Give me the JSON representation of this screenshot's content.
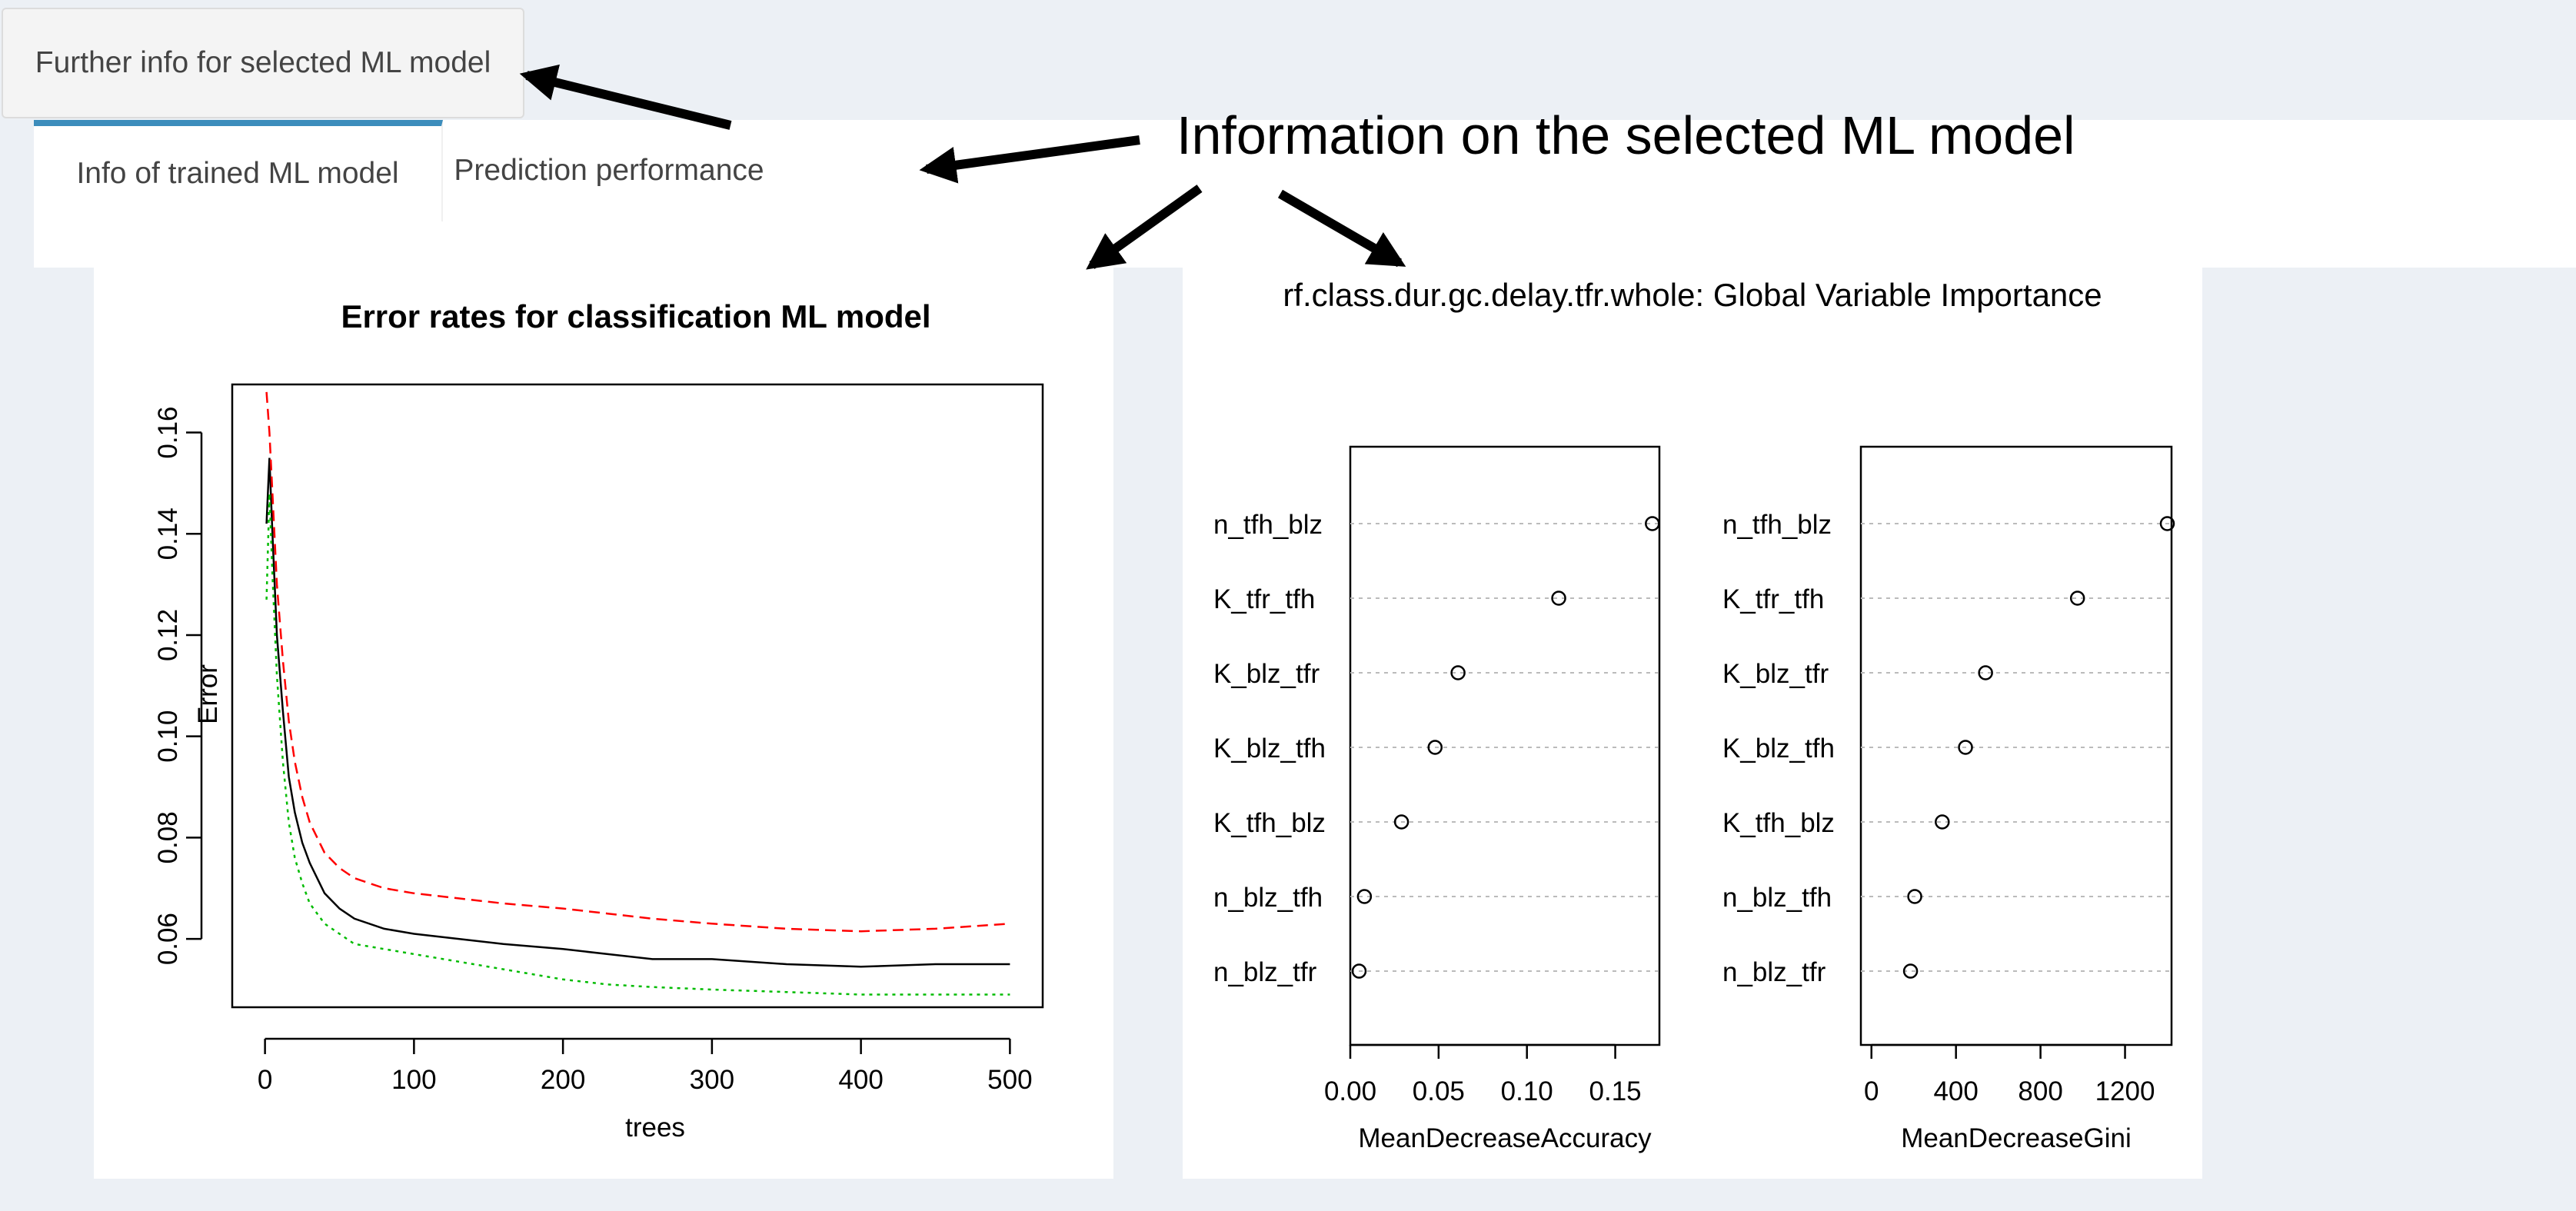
{
  "further_button": {
    "label": "Further info for selected ML model"
  },
  "tabs": [
    {
      "label": "Info of trained ML model",
      "active": true
    },
    {
      "label": "Prediction performance",
      "active": false
    }
  ],
  "annotation": {
    "text": "Information on the selected ML model"
  },
  "colors": {
    "accent": "#3c8dbc",
    "page_bg": "#ecf0f5",
    "oob": "#000000",
    "class1": "#ff0000",
    "class2": "#00bb00"
  },
  "chart_data": [
    {
      "type": "line",
      "title": "Error rates for classification ML model",
      "xlabel": "trees",
      "ylabel": "Error",
      "xlim": [
        0,
        500
      ],
      "ylim": [
        0.05,
        0.16
      ],
      "xticks": [
        "0",
        "100",
        "200",
        "300",
        "400",
        "500"
      ],
      "yticks": [
        "0.06",
        "0.08",
        "0.10",
        "0.12",
        "0.14",
        "0.16"
      ],
      "x": [
        1,
        3,
        5,
        8,
        12,
        16,
        20,
        25,
        30,
        40,
        50,
        60,
        80,
        100,
        130,
        160,
        200,
        230,
        260,
        300,
        350,
        400,
        450,
        500
      ],
      "series": [
        {
          "style": "solid",
          "color": "#000000",
          "values": [
            0.142,
            0.155,
            0.14,
            0.12,
            0.105,
            0.092,
            0.085,
            0.079,
            0.075,
            0.069,
            0.066,
            0.064,
            0.062,
            0.061,
            0.06,
            0.059,
            0.058,
            0.057,
            0.056,
            0.056,
            0.055,
            0.0545,
            0.055,
            0.055
          ]
        },
        {
          "style": "dashed",
          "color": "#ff0000",
          "values": [
            0.168,
            0.16,
            0.148,
            0.13,
            0.115,
            0.103,
            0.095,
            0.088,
            0.083,
            0.077,
            0.074,
            0.072,
            0.07,
            0.069,
            0.068,
            0.067,
            0.066,
            0.065,
            0.064,
            0.063,
            0.062,
            0.0615,
            0.062,
            0.063
          ]
        },
        {
          "style": "dotted",
          "color": "#00bb00",
          "values": [
            0.127,
            0.148,
            0.132,
            0.112,
            0.095,
            0.083,
            0.076,
            0.071,
            0.067,
            0.063,
            0.061,
            0.059,
            0.058,
            0.057,
            0.0555,
            0.054,
            0.052,
            0.051,
            0.0505,
            0.05,
            0.0495,
            0.049,
            0.049,
            0.049
          ]
        }
      ]
    },
    {
      "type": "scatter",
      "title": "rf.class.dur.gc.delay.tfr.whole: Global Variable Importance",
      "variables": [
        "n_tfh_blz",
        "K_tfr_tfh",
        "K_blz_tfr",
        "K_blz_tfh",
        "K_tfh_blz",
        "n_blz_tfh",
        "n_blz_tfr"
      ],
      "panels": [
        {
          "xlabel": "MeanDecreaseAccuracy",
          "xlim": [
            0,
            0.175
          ],
          "xticks": [
            0,
            0.05,
            0.1,
            0.15
          ],
          "xtick_labels": [
            "0.00",
            "0.05",
            "0.10",
            "0.15"
          ],
          "values": [
            0.171,
            0.118,
            0.061,
            0.048,
            0.029,
            0.008,
            0.005
          ]
        },
        {
          "xlabel": "MeanDecreaseGini",
          "xlim": [
            -50,
            1420
          ],
          "xticks": [
            0,
            400,
            800,
            1200
          ],
          "xtick_labels": [
            "0",
            "400",
            "800",
            "1200"
          ],
          "values": [
            1400,
            975,
            540,
            445,
            335,
            205,
            185
          ]
        }
      ]
    }
  ]
}
